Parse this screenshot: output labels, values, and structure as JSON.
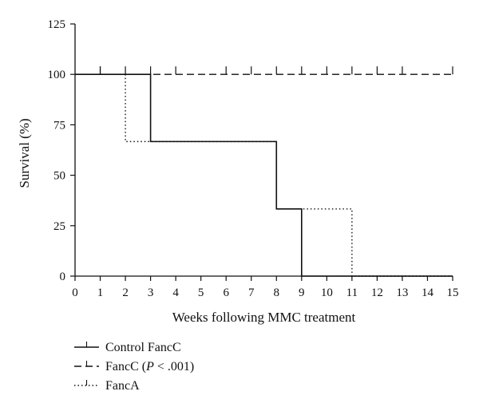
{
  "chart_data": {
    "type": "line",
    "subtype": "kaplan-meier step",
    "title": "",
    "xlabel": "Weeks following MMC treatment",
    "ylabel": "Survival (%)",
    "xlim": [
      0,
      15
    ],
    "ylim": [
      0,
      125
    ],
    "xticks": [
      "0",
      "1",
      "2",
      "3",
      "4",
      "5",
      "6",
      "7",
      "8",
      "9",
      "10",
      "11",
      "12",
      "13",
      "14",
      "15"
    ],
    "yticks": [
      "0",
      "25",
      "50",
      "75",
      "100",
      "125"
    ],
    "grid": false,
    "legend_position": "bottom-left",
    "series": [
      {
        "name": "Control FancC",
        "line_style": "solid",
        "steps": [
          [
            0,
            100
          ],
          [
            3,
            100
          ],
          [
            3,
            66.7
          ],
          [
            8,
            66.7
          ],
          [
            8,
            33.3
          ],
          [
            9,
            33.3
          ],
          [
            9,
            0
          ],
          [
            15,
            0
          ]
        ],
        "censor_x": [
          1
        ]
      },
      {
        "name": "FancC (P < .001)",
        "legend_parts": [
          "FancC (",
          "P",
          " < .001)"
        ],
        "line_style": "dashed",
        "steps": [
          [
            0,
            100
          ],
          [
            15,
            100
          ]
        ],
        "censor_x": [
          1,
          2,
          3,
          4,
          6,
          7,
          8,
          9,
          10,
          11,
          12,
          13,
          15
        ]
      },
      {
        "name": "FancA",
        "line_style": "dotted",
        "steps": [
          [
            0,
            100
          ],
          [
            2,
            100
          ],
          [
            2,
            66.7
          ],
          [
            8,
            66.7
          ],
          [
            8,
            33.3
          ],
          [
            11,
            33.3
          ],
          [
            11,
            0
          ],
          [
            15,
            0
          ]
        ],
        "censor_x": []
      }
    ]
  }
}
